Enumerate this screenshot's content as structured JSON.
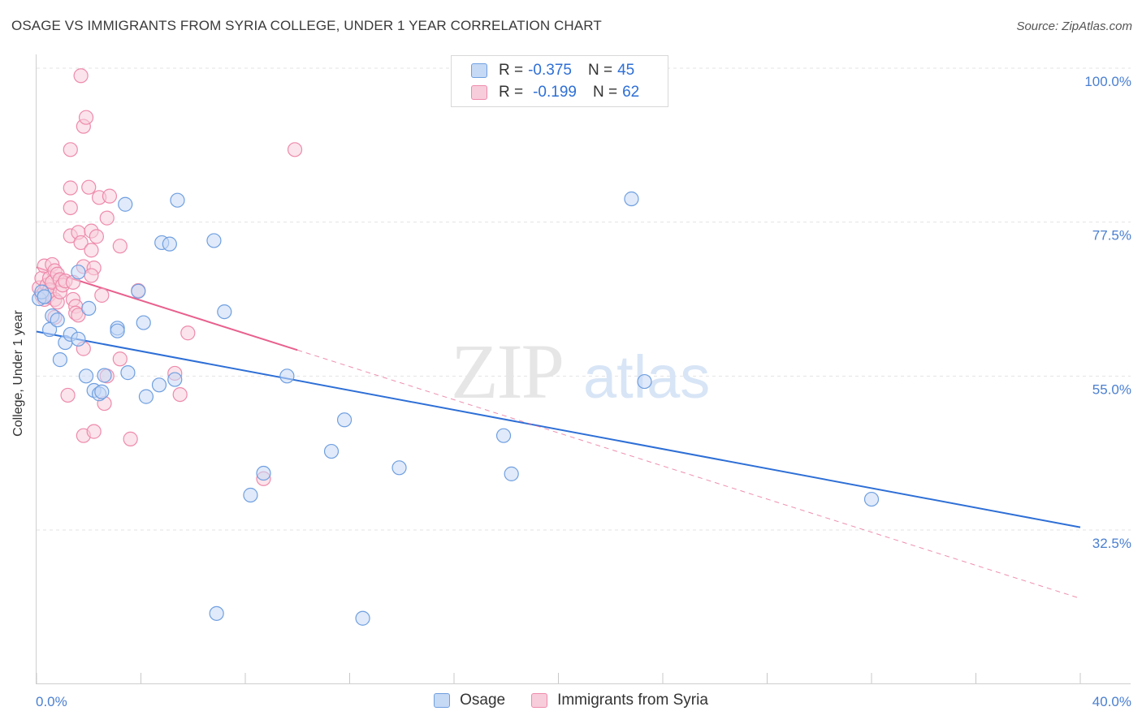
{
  "title": "OSAGE VS IMMIGRANTS FROM SYRIA COLLEGE, UNDER 1 YEAR CORRELATION CHART",
  "source": "Source: ZipAtlas.com",
  "colors": {
    "osage": "#6f9fe0",
    "osage_fill": "#c6d9f5",
    "osage_line": "#2e6fd6",
    "syria": "#ee8aab",
    "syria_fill": "#f8cddb",
    "syria_line": "#e8608e"
  },
  "legend": {
    "rows": [
      {
        "r_label": "R =",
        "r_value": "-0.375",
        "n_label": "N =",
        "n_value": "45"
      },
      {
        "r_label": "R =",
        "r_value": "-0.199",
        "n_label": "N =",
        "n_value": "62"
      }
    ],
    "bottom": [
      {
        "label": "Osage"
      },
      {
        "label": "Immigrants from Syria"
      }
    ]
  },
  "watermark": {
    "zip": "ZIP",
    "atlas": "atlas"
  },
  "chart_data": {
    "type": "scatter",
    "title": "OSAGE VS IMMIGRANTS FROM SYRIA COLLEGE, UNDER 1 YEAR CORRELATION CHART",
    "xlabel": "",
    "ylabel": "College, Under 1 year",
    "xlim": [
      0,
      40
    ],
    "ylim": [
      15,
      105
    ],
    "x_tick_labels": [
      "0.0%",
      "40.0%"
    ],
    "y_ticks": [
      32.5,
      55.0,
      77.5,
      100.0
    ],
    "y_tick_labels": [
      "32.5%",
      "55.0%",
      "77.5%",
      "100.0%"
    ],
    "series": [
      {
        "name": "Osage",
        "R": -0.375,
        "N": 45,
        "trend": {
          "x": [
            0,
            40
          ],
          "y": [
            61.5,
            32.9
          ],
          "style": "solid"
        },
        "points": [
          [
            0.3,
            66.6
          ],
          [
            0.5,
            61.8
          ],
          [
            0.6,
            63.8
          ],
          [
            0.8,
            63.2
          ],
          [
            0.9,
            57.4
          ],
          [
            1.1,
            59.9
          ],
          [
            1.3,
            61.1
          ],
          [
            1.6,
            60.4
          ],
          [
            1.6,
            70.2
          ],
          [
            1.9,
            55.0
          ],
          [
            2.0,
            64.9
          ],
          [
            2.2,
            52.9
          ],
          [
            2.4,
            52.4
          ],
          [
            2.5,
            52.7
          ],
          [
            2.6,
            55.1
          ],
          [
            3.1,
            62.0
          ],
          [
            3.1,
            61.6
          ],
          [
            3.4,
            80.1
          ],
          [
            3.5,
            55.5
          ],
          [
            3.9,
            67.4
          ],
          [
            4.1,
            62.8
          ],
          [
            4.2,
            52.0
          ],
          [
            4.7,
            53.7
          ],
          [
            4.8,
            74.5
          ],
          [
            5.1,
            74.3
          ],
          [
            5.3,
            54.5
          ],
          [
            5.4,
            80.7
          ],
          [
            6.8,
            74.8
          ],
          [
            6.9,
            20.3
          ],
          [
            7.2,
            64.4
          ],
          [
            8.2,
            37.6
          ],
          [
            8.7,
            40.8
          ],
          [
            9.6,
            55.0
          ],
          [
            11.3,
            44.0
          ],
          [
            11.8,
            48.6
          ],
          [
            12.5,
            19.6
          ],
          [
            13.9,
            41.6
          ],
          [
            17.9,
            46.3
          ],
          [
            18.2,
            40.7
          ],
          [
            22.8,
            80.9
          ],
          [
            23.3,
            54.2
          ],
          [
            32.0,
            37.0
          ],
          [
            0.1,
            66.3
          ],
          [
            0.2,
            67.3
          ],
          [
            0.3,
            66.6
          ]
        ]
      },
      {
        "name": "Immigrants from Syria",
        "R": -0.199,
        "N": 62,
        "trend": {
          "x": [
            0,
            10
          ],
          "y": [
            70.9,
            58.8
          ],
          "style": "solid"
        },
        "trend_extended": {
          "x": [
            10,
            40
          ],
          "y": [
            58.8,
            22.5
          ],
          "style": "dashed"
        },
        "points": [
          [
            0.1,
            67.9
          ],
          [
            0.2,
            66.8
          ],
          [
            0.2,
            69.3
          ],
          [
            0.3,
            71.1
          ],
          [
            0.3,
            67.3
          ],
          [
            0.3,
            66.2
          ],
          [
            0.4,
            66.6
          ],
          [
            0.4,
            68.3
          ],
          [
            0.5,
            69.3
          ],
          [
            0.5,
            67.6
          ],
          [
            0.5,
            66.9
          ],
          [
            0.6,
            68.7
          ],
          [
            0.6,
            71.3
          ],
          [
            0.7,
            66.2
          ],
          [
            0.7,
            70.4
          ],
          [
            0.7,
            63.6
          ],
          [
            0.8,
            69.9
          ],
          [
            0.8,
            65.8
          ],
          [
            0.9,
            67.3
          ],
          [
            0.9,
            69.1
          ],
          [
            1.0,
            68.3
          ],
          [
            1.1,
            68.9
          ],
          [
            1.2,
            52.2
          ],
          [
            1.3,
            88.1
          ],
          [
            1.3,
            82.5
          ],
          [
            1.3,
            79.6
          ],
          [
            1.3,
            75.5
          ],
          [
            1.4,
            68.7
          ],
          [
            1.4,
            66.2
          ],
          [
            1.5,
            65.2
          ],
          [
            1.5,
            64.2
          ],
          [
            1.6,
            63.9
          ],
          [
            1.6,
            76.0
          ],
          [
            1.7,
            74.5
          ],
          [
            1.7,
            98.9
          ],
          [
            1.8,
            59.0
          ],
          [
            1.8,
            71.0
          ],
          [
            1.8,
            46.3
          ],
          [
            1.8,
            91.5
          ],
          [
            1.9,
            92.8
          ],
          [
            2.0,
            82.6
          ],
          [
            2.1,
            76.2
          ],
          [
            2.2,
            70.8
          ],
          [
            2.1,
            73.4
          ],
          [
            2.1,
            69.7
          ],
          [
            2.2,
            46.9
          ],
          [
            2.3,
            75.4
          ],
          [
            2.4,
            81.1
          ],
          [
            2.5,
            66.8
          ],
          [
            2.7,
            55.0
          ],
          [
            2.6,
            51.0
          ],
          [
            2.7,
            78.1
          ],
          [
            2.8,
            81.3
          ],
          [
            3.2,
            74.0
          ],
          [
            3.2,
            57.5
          ],
          [
            3.6,
            45.8
          ],
          [
            3.9,
            67.5
          ],
          [
            5.3,
            55.4
          ],
          [
            5.5,
            52.3
          ],
          [
            5.8,
            61.3
          ],
          [
            8.7,
            40.0
          ],
          [
            9.9,
            88.1
          ]
        ]
      }
    ]
  }
}
